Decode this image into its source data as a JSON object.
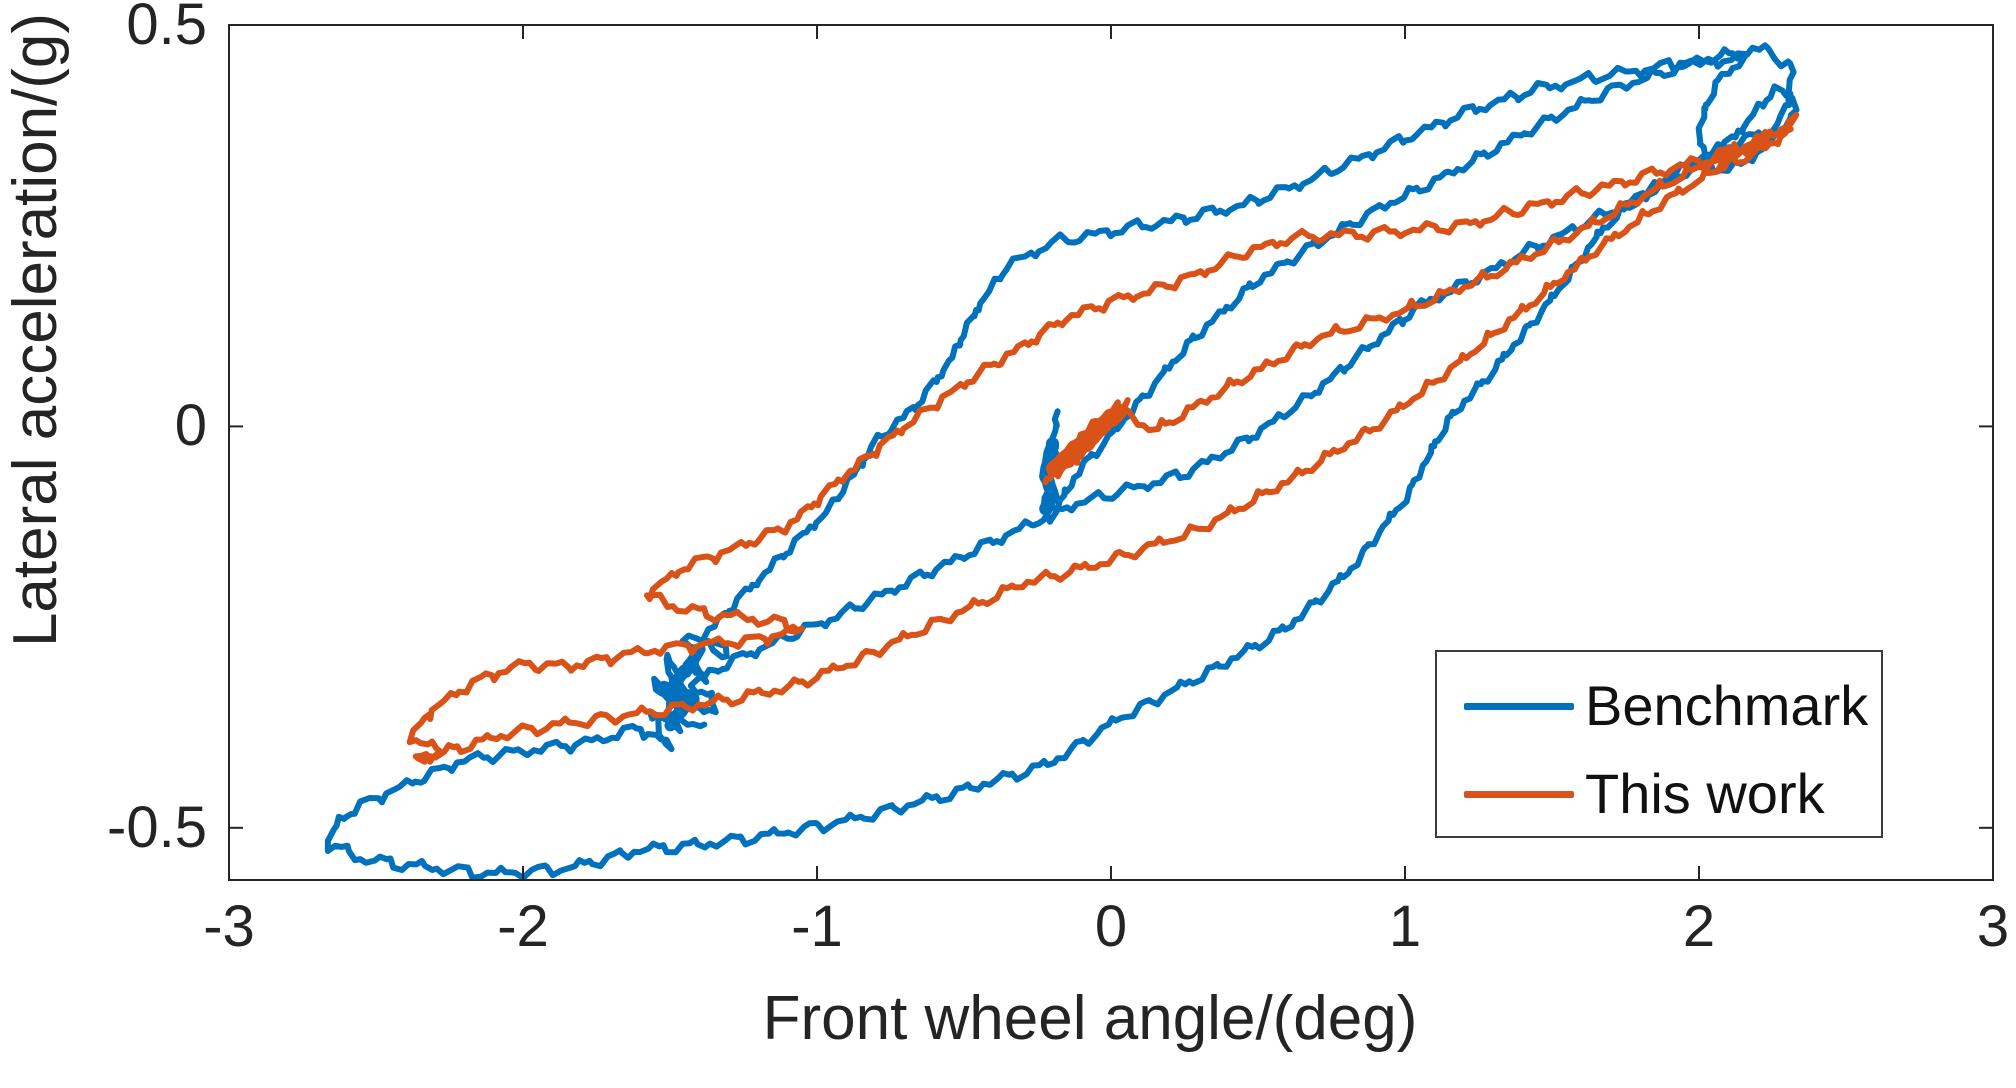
{
  "figure": {
    "background": "#ffffff",
    "plot_border_color": "#262626"
  },
  "chart_data": {
    "type": "line",
    "title": "",
    "xlabel": "Front wheel angle/(deg)",
    "ylabel": "Lateral acceleration/(g)",
    "xlim": [
      -3,
      3
    ],
    "ylim": [
      -0.565,
      0.5
    ],
    "xticks": [
      -3,
      -2,
      -1,
      0,
      1,
      2,
      3
    ],
    "xtick_labels": [
      "-3",
      "-2",
      "-1",
      "0",
      "1",
      "2",
      "3"
    ],
    "yticks": [
      0.5,
      0,
      -0.5
    ],
    "ytick_labels": [
      "0.5",
      "0",
      "-0.5"
    ],
    "grid": false,
    "legend_position": "lower right",
    "description": "Hysteresis loops of lateral acceleration versus front wheel angle for two controllers; noisy measured trajectories. Benchmark (blue) traces a large wide loop; This work (orange) traces a narrower loop, starting from a dense wedge near (-0.1, 0) and ending in a tangle near (-1.8, -0.3).",
    "series": [
      {
        "name": "Benchmark",
        "color": "#0072BD",
        "line_style": "noisy solid",
        "strands": [
          {
            "w": 6,
            "pts": [
              [
                -0.18,
                0.02
              ],
              [
                -0.22,
                -0.06
              ],
              [
                -0.19,
                -0.03
              ],
              [
                -0.23,
                -0.1
              ],
              [
                -0.2,
                -0.11
              ],
              [
                -0.1,
                -0.05
              ],
              [
                0.0,
                -0.01
              ],
              [
                0.28,
                0.11
              ],
              [
                0.49,
                0.18
              ],
              [
                0.66,
                0.22
              ],
              [
                0.9,
                0.27
              ],
              [
                1.15,
                0.315
              ],
              [
                1.45,
                0.375
              ],
              [
                1.7,
                0.42
              ],
              [
                1.95,
                0.45
              ],
              [
                2.12,
                0.465
              ],
              [
                2.24,
                0.47
              ],
              [
                2.32,
                0.44
              ],
              [
                2.3,
                0.4
              ],
              [
                2.22,
                0.345
              ],
              [
                2.1,
                0.318
              ],
              [
                2.02,
                0.33
              ],
              [
                2.0,
                0.375
              ],
              [
                2.06,
                0.43
              ],
              [
                2.15,
                0.458
              ],
              [
                1.95,
                0.452
              ],
              [
                1.7,
                0.438
              ],
              [
                1.45,
                0.42
              ],
              [
                1.2,
                0.39
              ],
              [
                0.95,
                0.35
              ],
              [
                0.7,
                0.31
              ],
              [
                0.45,
                0.275
              ],
              [
                0.2,
                0.255
              ],
              [
                0.0,
                0.243
              ],
              [
                -0.2,
                0.228
              ],
              [
                -0.35,
                0.2
              ],
              [
                -0.45,
                0.15
              ],
              [
                -0.55,
                0.08
              ],
              [
                -0.65,
                0.03
              ],
              [
                -0.8,
                -0.02
              ],
              [
                -0.95,
                -0.1
              ],
              [
                -1.1,
                -0.155
              ],
              [
                -1.25,
                -0.21
              ],
              [
                -1.38,
                -0.26
              ],
              [
                -1.3,
                -0.285
              ],
              [
                -1.45,
                -0.26
              ],
              [
                -1.38,
                -0.315
              ],
              [
                -1.52,
                -0.29
              ],
              [
                -1.44,
                -0.35
              ],
              [
                -1.55,
                -0.315
              ],
              [
                -1.47,
                -0.378
              ],
              [
                -1.57,
                -0.352
              ],
              [
                -1.5,
                -0.4
              ],
              [
                -1.6,
                -0.375
              ],
              [
                -1.75,
                -0.392
              ],
              [
                -2.0,
                -0.405
              ],
              [
                -2.2,
                -0.416
              ],
              [
                -2.4,
                -0.447
              ],
              [
                -2.55,
                -0.472
              ],
              [
                -2.63,
                -0.492
              ],
              [
                -2.66,
                -0.52
              ],
              [
                -2.55,
                -0.538
              ],
              [
                -2.35,
                -0.548
              ],
              [
                -2.1,
                -0.557
              ],
              [
                -1.85,
                -0.55
              ],
              [
                -1.6,
                -0.527
              ],
              [
                -1.38,
                -0.52
              ],
              [
                -1.15,
                -0.508
              ],
              [
                -0.89,
                -0.49
              ],
              [
                -0.55,
                -0.458
              ],
              [
                -0.21,
                -0.42
              ],
              [
                0.02,
                -0.365
              ],
              [
                0.36,
                -0.3
              ],
              [
                0.6,
                -0.25
              ],
              [
                0.81,
                -0.18
              ],
              [
                1.0,
                -0.09
              ],
              [
                1.15,
                0.01
              ],
              [
                1.3,
                0.07
              ],
              [
                1.5,
                0.16
              ],
              [
                1.68,
                0.25
              ],
              [
                1.85,
                0.3
              ],
              [
                2.0,
                0.335
              ],
              [
                2.15,
                0.358
              ],
              [
                2.3,
                0.372
              ],
              [
                2.33,
                0.4
              ],
              [
                2.26,
                0.42
              ],
              [
                2.12,
                0.36
              ],
              [
                2.0,
                0.325
              ],
              [
                1.8,
                0.285
              ],
              [
                1.6,
                0.25
              ],
              [
                1.4,
                0.215
              ],
              [
                1.25,
                0.185
              ],
              [
                1.05,
                0.15
              ],
              [
                0.85,
                0.09
              ],
              [
                0.65,
                0.03
              ],
              [
                0.45,
                -0.02
              ],
              [
                0.25,
                -0.06
              ],
              [
                0.05,
                -0.08
              ],
              [
                -0.15,
                -0.1
              ],
              [
                -0.35,
                -0.135
              ],
              [
                -0.55,
                -0.17
              ],
              [
                -0.75,
                -0.205
              ],
              [
                -0.95,
                -0.24
              ],
              [
                -1.15,
                -0.27
              ],
              [
                -1.3,
                -0.295
              ],
              [
                -1.42,
                -0.32
              ],
              [
                -1.34,
                -0.35
              ],
              [
                -1.47,
                -0.355
              ],
              [
                -1.39,
                -0.38
              ]
            ]
          },
          {
            "w": 13,
            "pts": [
              [
                -0.2,
                -0.02
              ],
              [
                -0.22,
                -0.06
              ],
              [
                -0.2,
                -0.09
              ],
              [
                -0.22,
                -0.1
              ]
            ]
          },
          {
            "w": 12,
            "pts": [
              [
                -1.4,
                -0.28
              ],
              [
                -1.48,
                -0.32
              ],
              [
                -1.42,
                -0.34
              ],
              [
                -1.5,
                -0.37
              ],
              [
                -1.45,
                -0.35
              ],
              [
                -1.52,
                -0.33
              ]
            ]
          }
        ]
      },
      {
        "name": "This work",
        "color": "#D95319",
        "line_style": "noisy solid",
        "strands": [
          {
            "w": 6,
            "pts": [
              [
                -0.23,
                -0.075
              ],
              [
                -0.1,
                -0.01
              ],
              [
                0.02,
                0.025
              ],
              [
                -0.14,
                -0.05
              ],
              [
                -0.02,
                0.0
              ],
              [
                0.06,
                0.03
              ],
              [
                -0.18,
                -0.055
              ],
              [
                -0.06,
                -0.015
              ],
              [
                0.04,
                0.02
              ],
              [
                0.15,
                -0.005
              ],
              [
                0.4,
                0.05
              ],
              [
                0.7,
                0.11
              ],
              [
                1.0,
                0.145
              ],
              [
                1.3,
                0.19
              ],
              [
                1.6,
                0.245
              ],
              [
                1.9,
                0.305
              ],
              [
                2.1,
                0.34
              ],
              [
                2.25,
                0.365
              ],
              [
                2.32,
                0.38
              ],
              [
                2.26,
                0.352
              ],
              [
                2.14,
                0.332
              ],
              [
                2.05,
                0.318
              ],
              [
                2.12,
                0.345
              ],
              [
                2.22,
                0.358
              ],
              [
                2.05,
                0.335
              ],
              [
                1.85,
                0.315
              ],
              [
                1.65,
                0.295
              ],
              [
                1.5,
                0.28
              ],
              [
                1.35,
                0.265
              ],
              [
                1.2,
                0.25
              ],
              [
                1.05,
                0.245
              ],
              [
                0.9,
                0.24
              ],
              [
                0.75,
                0.238
              ],
              [
                0.6,
                0.233
              ],
              [
                0.45,
                0.215
              ],
              [
                0.3,
                0.19
              ],
              [
                0.15,
                0.17
              ],
              [
                0.0,
                0.155
              ],
              [
                -0.15,
                0.135
              ],
              [
                -0.3,
                0.1
              ],
              [
                -0.45,
                0.065
              ],
              [
                -0.55,
                0.04
              ],
              [
                -0.7,
                0.0
              ],
              [
                -0.9,
                -0.06
              ],
              [
                -1.1,
                -0.125
              ],
              [
                -1.3,
                -0.155
              ],
              [
                -1.45,
                -0.175
              ],
              [
                -1.58,
                -0.21
              ],
              [
                -1.45,
                -0.228
              ],
              [
                -1.3,
                -0.236
              ],
              [
                -1.15,
                -0.242
              ],
              [
                -1.05,
                -0.252
              ],
              [
                -1.2,
                -0.266
              ],
              [
                -1.4,
                -0.272
              ],
              [
                -1.55,
                -0.278
              ],
              [
                -1.7,
                -0.288
              ],
              [
                -1.85,
                -0.3
              ],
              [
                -2.0,
                -0.296
              ],
              [
                -2.15,
                -0.316
              ],
              [
                -2.3,
                -0.35
              ],
              [
                -2.38,
                -0.386
              ],
              [
                -2.28,
                -0.406
              ],
              [
                -2.37,
                -0.416
              ],
              [
                -2.2,
                -0.398
              ],
              [
                -2.05,
                -0.382
              ],
              [
                -1.9,
                -0.372
              ],
              [
                -1.7,
                -0.362
              ],
              [
                -1.5,
                -0.352
              ],
              [
                -1.3,
                -0.34
              ],
              [
                -1.1,
                -0.325
              ],
              [
                -0.89,
                -0.295
              ],
              [
                -0.6,
                -0.245
              ],
              [
                -0.3,
                -0.195
              ],
              [
                -0.05,
                -0.172
              ],
              [
                0.3,
                -0.128
              ],
              [
                0.6,
                -0.068
              ],
              [
                0.9,
                0.0
              ],
              [
                1.15,
                0.07
              ],
              [
                1.4,
                0.145
              ],
              [
                1.65,
                0.22
              ],
              [
                1.9,
                0.285
              ],
              [
                2.1,
                0.33
              ],
              [
                2.22,
                0.355
              ],
              [
                2.31,
                0.374
              ]
            ]
          },
          {
            "w": 16,
            "pts": [
              [
                -0.19,
                -0.05
              ],
              [
                -0.11,
                -0.025
              ],
              [
                -0.03,
                0.0
              ],
              [
                0.03,
                0.02
              ],
              [
                -0.08,
                -0.018
              ],
              [
                -0.15,
                -0.04
              ]
            ]
          }
        ]
      }
    ],
    "legend": {
      "entries": [
        {
          "label": "Benchmark",
          "color": "#0072BD"
        },
        {
          "label": "This work",
          "color": "#D95319"
        }
      ]
    }
  }
}
